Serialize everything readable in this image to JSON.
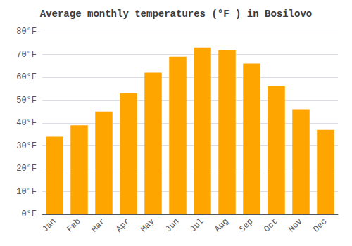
{
  "chart_data": {
    "type": "bar",
    "title": "Average monthly temperatures (°F ) in Bosilovo",
    "categories": [
      "Jan",
      "Feb",
      "Mar",
      "Apr",
      "May",
      "Jun",
      "Jul",
      "Aug",
      "Sep",
      "Oct",
      "Nov",
      "Dec"
    ],
    "values": [
      34,
      39,
      45,
      53,
      62,
      69,
      73,
      72,
      66,
      56,
      46,
      37
    ],
    "color": "#FFA500",
    "ylim": [
      0,
      80
    ],
    "yticks": [
      {
        "value": 0,
        "label": "0°F"
      },
      {
        "value": 10,
        "label": "10°F"
      },
      {
        "value": 20,
        "label": "20°F"
      },
      {
        "value": 30,
        "label": "30°F"
      },
      {
        "value": 40,
        "label": "40°F"
      },
      {
        "value": 50,
        "label": "50°F"
      },
      {
        "value": 60,
        "label": "60°F"
      },
      {
        "value": 70,
        "label": "70°F"
      },
      {
        "value": 80,
        "label": "80°F"
      }
    ],
    "grid": true
  }
}
